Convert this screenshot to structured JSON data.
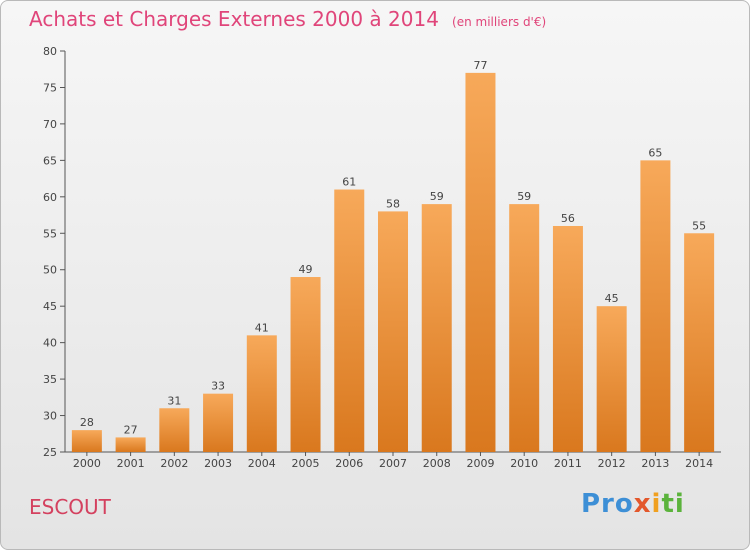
{
  "chart_data": {
    "type": "bar",
    "title": "Achats et Charges Externes 2000 à 2014",
    "subtitle": "(en milliers d'€)",
    "categories": [
      "2000",
      "2001",
      "2002",
      "2003",
      "2004",
      "2005",
      "2006",
      "2007",
      "2008",
      "2009",
      "2010",
      "2011",
      "2012",
      "2013",
      "2014"
    ],
    "values": [
      28,
      27,
      31,
      33,
      41,
      49,
      61,
      58,
      59,
      77,
      59,
      56,
      45,
      65,
      55
    ],
    "ylim": [
      25,
      80
    ],
    "yticks": [
      25,
      30,
      35,
      40,
      45,
      50,
      55,
      60,
      65,
      70,
      75,
      80
    ],
    "grid": false,
    "legend": "none",
    "bar_color_top": "#f7a95a",
    "bar_color_bottom": "#d9781e"
  },
  "place": "ESCOUT",
  "logo": {
    "p1": "Pro",
    "p2": "x",
    "p3": "i",
    "p4": "ti"
  }
}
